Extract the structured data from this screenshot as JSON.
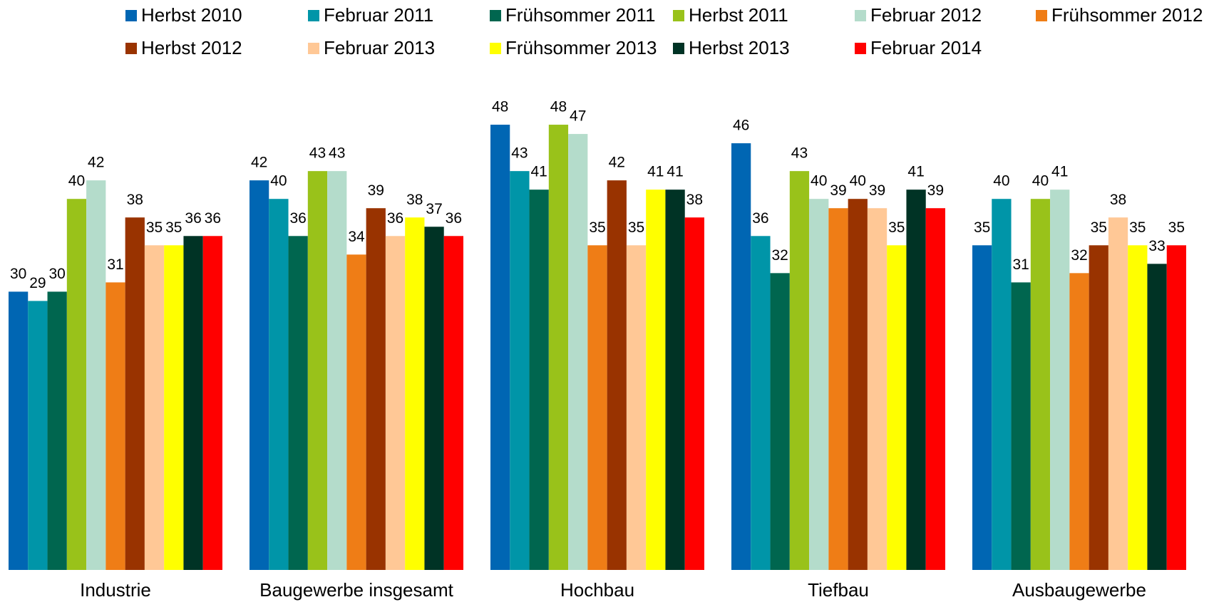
{
  "chart_data": {
    "type": "bar",
    "categories": [
      "Industrie",
      "Baugewerbe insgesamt",
      "Hochbau",
      "Tiefbau",
      "Ausbaugewerbe"
    ],
    "ylim": [
      0,
      50
    ],
    "series": [
      {
        "name": "Herbst 2010",
        "color": "#0066b3",
        "values": [
          30,
          42,
          48,
          46,
          35
        ]
      },
      {
        "name": "Februar 2011",
        "color": "#0095a8",
        "values": [
          29,
          40,
          43,
          36,
          40
        ]
      },
      {
        "name": "Frühsommer 2011",
        "color": "#00664f",
        "values": [
          30,
          36,
          41,
          32,
          31
        ]
      },
      {
        "name": "Herbst 2011",
        "color": "#99c21a",
        "values": [
          40,
          43,
          48,
          43,
          40
        ]
      },
      {
        "name": "Februar 2012",
        "color": "#b4dccb",
        "values": [
          42,
          43,
          47,
          40,
          41
        ]
      },
      {
        "name": "Frühsommer 2012",
        "color": "#ef7d16",
        "values": [
          31,
          34,
          35,
          39,
          32
        ]
      },
      {
        "name": "Herbst 2012",
        "color": "#993300",
        "values": [
          38,
          39,
          42,
          40,
          35
        ]
      },
      {
        "name": "Februar 2013",
        "color": "#ffc896",
        "values": [
          35,
          36,
          35,
          39,
          38
        ]
      },
      {
        "name": "Frühsommer 2013",
        "color": "#ffff00",
        "values": [
          35,
          38,
          41,
          35,
          35
        ]
      },
      {
        "name": "Herbst 2013",
        "color": "#003325",
        "values": [
          36,
          37,
          41,
          41,
          33
        ]
      },
      {
        "name": "Februar 2014",
        "color": "#ff0000",
        "values": [
          36,
          36,
          38,
          39,
          35
        ]
      }
    ]
  }
}
